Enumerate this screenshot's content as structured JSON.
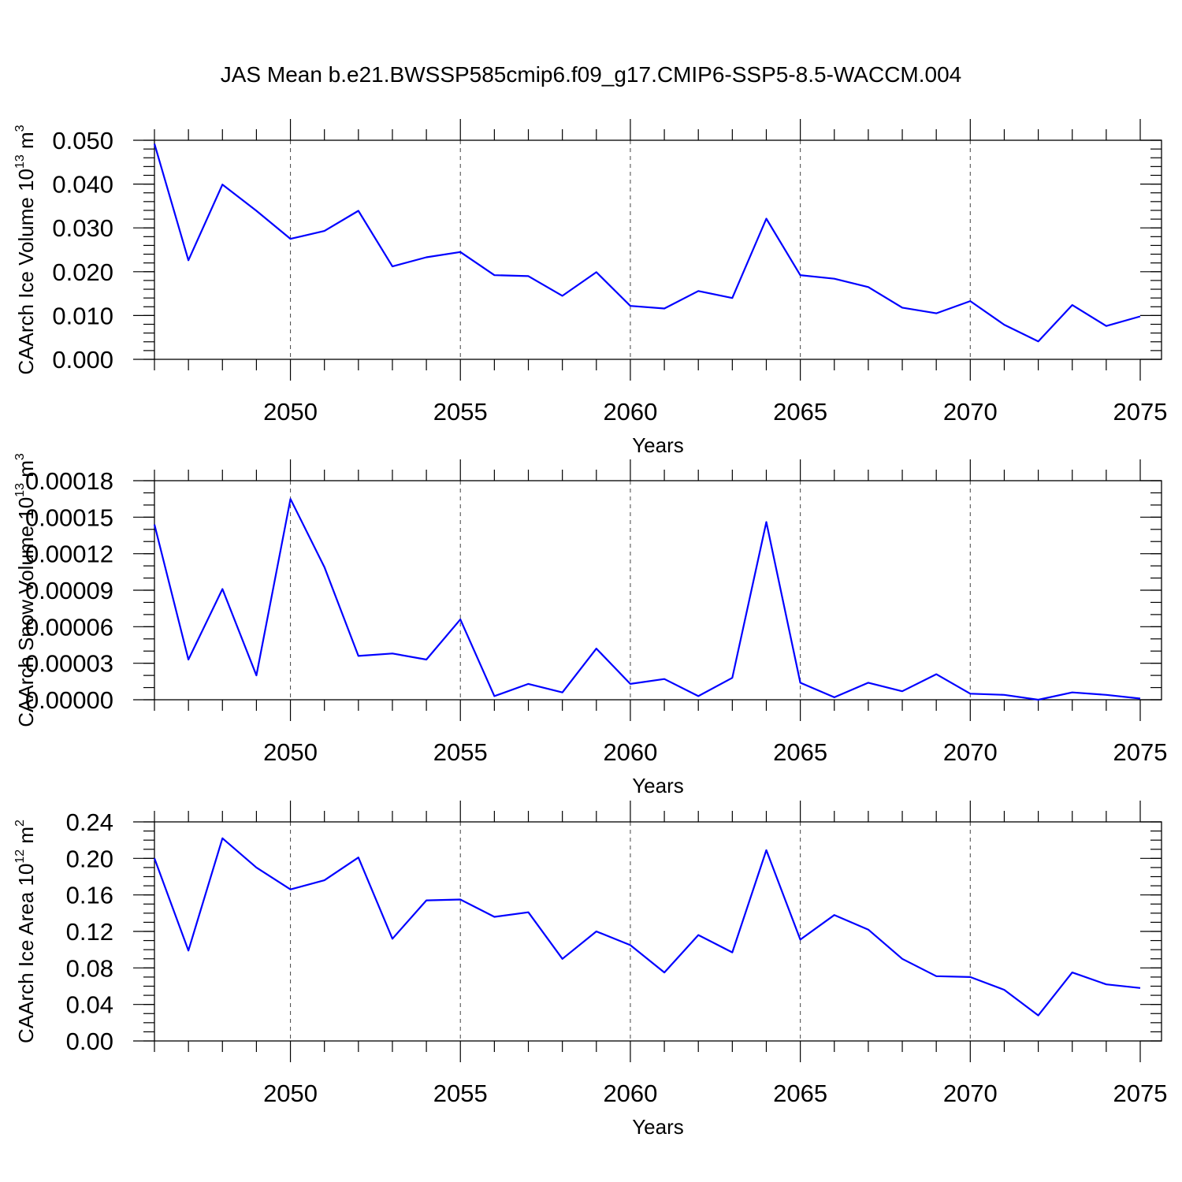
{
  "figure": {
    "title": "JAS Mean b.e21.BWSSP585cmip6.f09_g17.CMIP6-SSP5-8.5-WACCM.004"
  },
  "chart_data": [
    {
      "type": "line",
      "title": "",
      "xlabel": "Years",
      "ylabel": {
        "text": "CAArch Ice Volume 10",
        "sup": "13",
        "unit": " m",
        "unit_sup": "3"
      },
      "xlim": [
        2046,
        2075
      ],
      "ylim": [
        0,
        0.05
      ],
      "xticks": [
        2050,
        2055,
        2060,
        2065,
        2070,
        2075
      ],
      "yticks": [
        0.0,
        0.01,
        0.02,
        0.03,
        0.04,
        0.05
      ],
      "ytick_labels": [
        "0.000",
        "0.010",
        "0.020",
        "0.030",
        "0.040",
        "0.050"
      ],
      "y_minor_step": 0.002,
      "grid": "vertical dashed at major x ticks",
      "line_color": "#0000ff",
      "x": [
        2046,
        2047,
        2048,
        2049,
        2050,
        2051,
        2052,
        2053,
        2054,
        2055,
        2056,
        2057,
        2058,
        2059,
        2060,
        2061,
        2062,
        2063,
        2064,
        2065,
        2066,
        2067,
        2068,
        2069,
        2070,
        2071,
        2072,
        2073,
        2074,
        2075
      ],
      "values": [
        0.0492,
        0.0226,
        0.0399,
        0.0339,
        0.0275,
        0.0293,
        0.0339,
        0.0212,
        0.0233,
        0.0245,
        0.0192,
        0.019,
        0.0145,
        0.0199,
        0.0122,
        0.0116,
        0.0156,
        0.014,
        0.0321,
        0.0192,
        0.0184,
        0.0165,
        0.0118,
        0.0105,
        0.0133,
        0.0079,
        0.0041,
        0.0124,
        0.0076,
        0.0098
      ]
    },
    {
      "type": "line",
      "title": "",
      "xlabel": "Years",
      "ylabel": {
        "text": "CAArch Snow Volume 10",
        "sup": "13",
        "unit": " m",
        "unit_sup": "3"
      },
      "xlim": [
        2046,
        2075
      ],
      "ylim": [
        0,
        0.00018
      ],
      "xticks": [
        2050,
        2055,
        2060,
        2065,
        2070,
        2075
      ],
      "yticks": [
        0.0,
        3e-05,
        6e-05,
        9e-05,
        0.00012,
        0.00015,
        0.00018
      ],
      "ytick_labels": [
        "0.00000",
        "0.00003",
        "0.00006",
        "0.00009",
        "0.00012",
        "0.00015",
        "0.00018"
      ],
      "y_minor_step": 1e-05,
      "grid": "vertical dashed at major x ticks",
      "line_color": "#0000ff",
      "x": [
        2046,
        2047,
        2048,
        2049,
        2050,
        2051,
        2052,
        2053,
        2054,
        2055,
        2056,
        2057,
        2058,
        2059,
        2060,
        2061,
        2062,
        2063,
        2064,
        2065,
        2066,
        2067,
        2068,
        2069,
        2070,
        2071,
        2072,
        2073,
        2074,
        2075
      ],
      "values": [
        0.000144,
        3.3e-05,
        9.1e-05,
        2e-05,
        0.000165,
        0.000109,
        3.6e-05,
        3.8e-05,
        3.3e-05,
        6.6e-05,
        3e-06,
        1.3e-05,
        6e-06,
        4.2e-05,
        1.3e-05,
        1.7e-05,
        3e-06,
        1.8e-05,
        0.000146,
        1.4e-05,
        2e-06,
        1.4e-05,
        7e-06,
        2.1e-05,
        5e-06,
        4e-06,
        0.0,
        6e-06,
        4e-06,
        1e-06
      ]
    },
    {
      "type": "line",
      "title": "",
      "xlabel": "Years",
      "ylabel": {
        "text": "CAArch Ice Area 10",
        "sup": "12",
        "unit": " m",
        "unit_sup": "2"
      },
      "xlim": [
        2046,
        2075
      ],
      "ylim": [
        0,
        0.24
      ],
      "xticks": [
        2050,
        2055,
        2060,
        2065,
        2070,
        2075
      ],
      "yticks": [
        0.0,
        0.04,
        0.08,
        0.12,
        0.16,
        0.2,
        0.24
      ],
      "ytick_labels": [
        "0.00",
        "0.04",
        "0.08",
        "0.12",
        "0.16",
        "0.20",
        "0.24"
      ],
      "y_minor_step": 0.01,
      "grid": "vertical dashed at major x ticks",
      "line_color": "#0000ff",
      "x": [
        2046,
        2047,
        2048,
        2049,
        2050,
        2051,
        2052,
        2053,
        2054,
        2055,
        2056,
        2057,
        2058,
        2059,
        2060,
        2061,
        2062,
        2063,
        2064,
        2065,
        2066,
        2067,
        2068,
        2069,
        2070,
        2071,
        2072,
        2073,
        2074,
        2075
      ],
      "values": [
        0.2,
        0.099,
        0.222,
        0.19,
        0.166,
        0.176,
        0.201,
        0.112,
        0.154,
        0.155,
        0.136,
        0.141,
        0.09,
        0.12,
        0.105,
        0.075,
        0.116,
        0.097,
        0.209,
        0.111,
        0.138,
        0.122,
        0.09,
        0.071,
        0.07,
        0.056,
        0.028,
        0.075,
        0.062,
        0.058
      ]
    }
  ]
}
